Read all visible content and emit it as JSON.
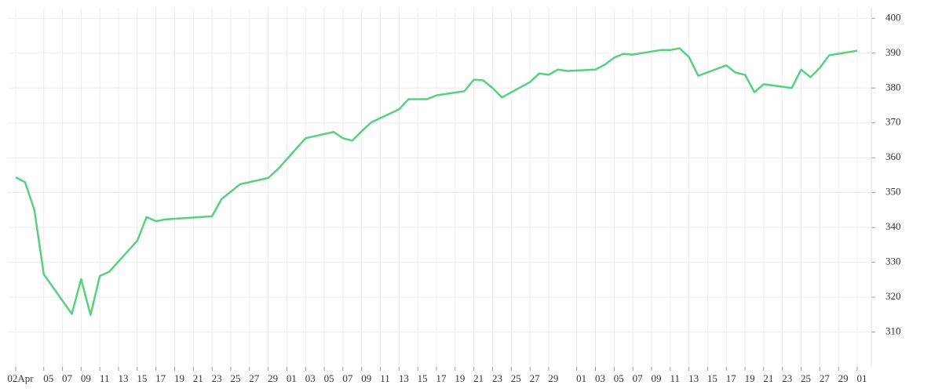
{
  "chart_data": {
    "type": "line",
    "color": "#57d17e",
    "grid": true,
    "y_axis_side": "right",
    "x": [
      "04-02",
      "04-03",
      "04-04",
      "04-05",
      "04-08",
      "04-09",
      "04-10",
      "04-11",
      "04-12",
      "04-15",
      "04-16",
      "04-17",
      "04-18",
      "04-23",
      "04-24",
      "04-26",
      "04-29",
      "04-30",
      "05-01",
      "05-03",
      "05-06",
      "05-07",
      "05-08",
      "05-09",
      "05-10",
      "05-13",
      "05-14",
      "05-16",
      "05-17",
      "05-20",
      "05-21",
      "05-22",
      "05-23",
      "05-24",
      "05-27",
      "05-28",
      "05-29",
      "05-30",
      "05-31",
      "06-03",
      "06-04",
      "06-05",
      "06-06",
      "06-07",
      "06-10",
      "06-11",
      "06-12",
      "06-13",
      "06-14",
      "06-17",
      "06-18",
      "06-19",
      "06-20",
      "06-21",
      "06-24",
      "06-25",
      "06-26",
      "06-27",
      "06-28",
      "07-01"
    ],
    "values": [
      354.4,
      353.0,
      345.0,
      326.6,
      315.2,
      325.2,
      314.9,
      326.1,
      327.3,
      336.2,
      343.0,
      341.8,
      342.3,
      343.2,
      348.1,
      352.4,
      354.2,
      356.6,
      359.6,
      365.6,
      367.4,
      365.6,
      364.9,
      367.6,
      370.1,
      373.9,
      376.8,
      376.8,
      377.9,
      379.1,
      382.4,
      382.2,
      380.0,
      377.3,
      381.7,
      384.2,
      383.8,
      385.3,
      384.9,
      385.3,
      386.7,
      388.7,
      389.8,
      389.6,
      390.9,
      390.9,
      391.4,
      388.9,
      383.5,
      386.5,
      384.4,
      383.8,
      378.8,
      381.1,
      380.0,
      385.3,
      383.1,
      385.8,
      389.4,
      390.7
    ],
    "xlim": [
      "04-02",
      "07-01"
    ],
    "xticks": [
      {
        "value": "04-02",
        "label": "02Apr"
      },
      {
        "value": "04-05",
        "label": "05"
      },
      {
        "value": "04-07",
        "label": "07"
      },
      {
        "value": "04-09",
        "label": "09"
      },
      {
        "value": "04-11",
        "label": "11"
      },
      {
        "value": "04-13",
        "label": "13"
      },
      {
        "value": "04-15",
        "label": "15"
      },
      {
        "value": "04-17",
        "label": "17"
      },
      {
        "value": "04-19",
        "label": "19"
      },
      {
        "value": "04-21",
        "label": "21"
      },
      {
        "value": "04-23",
        "label": "23"
      },
      {
        "value": "04-25",
        "label": "25"
      },
      {
        "value": "04-27",
        "label": "27"
      },
      {
        "value": "04-29",
        "label": "29"
      },
      {
        "value": "05-01",
        "label": "01"
      },
      {
        "value": "05-03",
        "label": "03"
      },
      {
        "value": "05-05",
        "label": "05"
      },
      {
        "value": "05-07",
        "label": "07"
      },
      {
        "value": "05-09",
        "label": "09"
      },
      {
        "value": "05-11",
        "label": "11"
      },
      {
        "value": "05-13",
        "label": "13"
      },
      {
        "value": "05-15",
        "label": "15"
      },
      {
        "value": "05-17",
        "label": "17"
      },
      {
        "value": "05-19",
        "label": "19"
      },
      {
        "value": "05-21",
        "label": "21"
      },
      {
        "value": "05-23",
        "label": "23"
      },
      {
        "value": "05-25",
        "label": "25"
      },
      {
        "value": "05-27",
        "label": "27"
      },
      {
        "value": "05-29",
        "label": "29"
      },
      {
        "value": "06-01",
        "label": "01"
      },
      {
        "value": "06-03",
        "label": "03"
      },
      {
        "value": "06-05",
        "label": "05"
      },
      {
        "value": "06-07",
        "label": "07"
      },
      {
        "value": "06-09",
        "label": "09"
      },
      {
        "value": "06-11",
        "label": "11"
      },
      {
        "value": "06-13",
        "label": "13"
      },
      {
        "value": "06-15",
        "label": "15"
      },
      {
        "value": "06-17",
        "label": "17"
      },
      {
        "value": "06-19",
        "label": "19"
      },
      {
        "value": "06-21",
        "label": "21"
      },
      {
        "value": "06-23",
        "label": "23"
      },
      {
        "value": "06-25",
        "label": "25"
      },
      {
        "value": "06-27",
        "label": "27"
      },
      {
        "value": "06-29",
        "label": "29"
      },
      {
        "value": "07-01",
        "label": "01"
      }
    ],
    "ylim": [
      300,
      403
    ],
    "yticks": [
      310,
      320,
      330,
      340,
      350,
      360,
      370,
      380,
      390,
      400
    ]
  }
}
